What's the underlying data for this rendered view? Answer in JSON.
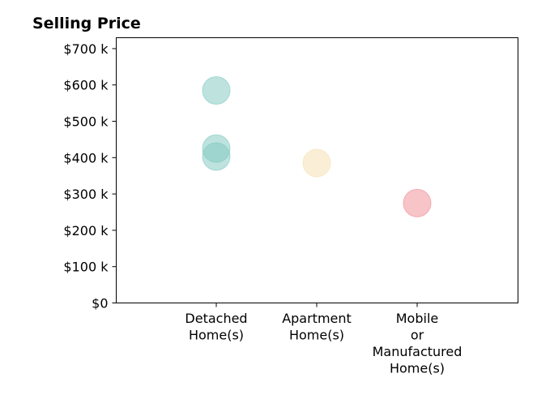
{
  "chart_data": {
    "type": "scatter",
    "title": "Selling Price",
    "xlabel": "",
    "ylabel": "",
    "ylim": [
      0,
      730000
    ],
    "grid": false,
    "categories": [
      [
        "Detached",
        "Home(s)"
      ],
      [
        "Apartment",
        "Home(s)"
      ],
      [
        "Mobile",
        "or",
        "Manufactured",
        "Home(s)"
      ]
    ],
    "y_ticks": [
      {
        "value": 0,
        "label": "$0"
      },
      {
        "value": 100000,
        "label": "$100 k"
      },
      {
        "value": 200000,
        "label": "$200 k"
      },
      {
        "value": 300000,
        "label": "$300 k"
      },
      {
        "value": 400000,
        "label": "$400 k"
      },
      {
        "value": 500000,
        "label": "$500 k"
      },
      {
        "value": 600000,
        "label": "$600 k"
      },
      {
        "value": 700000,
        "label": "$700 k"
      }
    ],
    "points": [
      {
        "category": 0,
        "y": 585000,
        "color": "#7ec8bf"
      },
      {
        "category": 0,
        "y": 425000,
        "color": "#7ec8bf"
      },
      {
        "category": 0,
        "y": 403000,
        "color": "#7ec8bf"
      },
      {
        "category": 1,
        "y": 385000,
        "color": "#f5dfae"
      },
      {
        "category": 2,
        "y": 275000,
        "color": "#f08a92"
      }
    ]
  }
}
